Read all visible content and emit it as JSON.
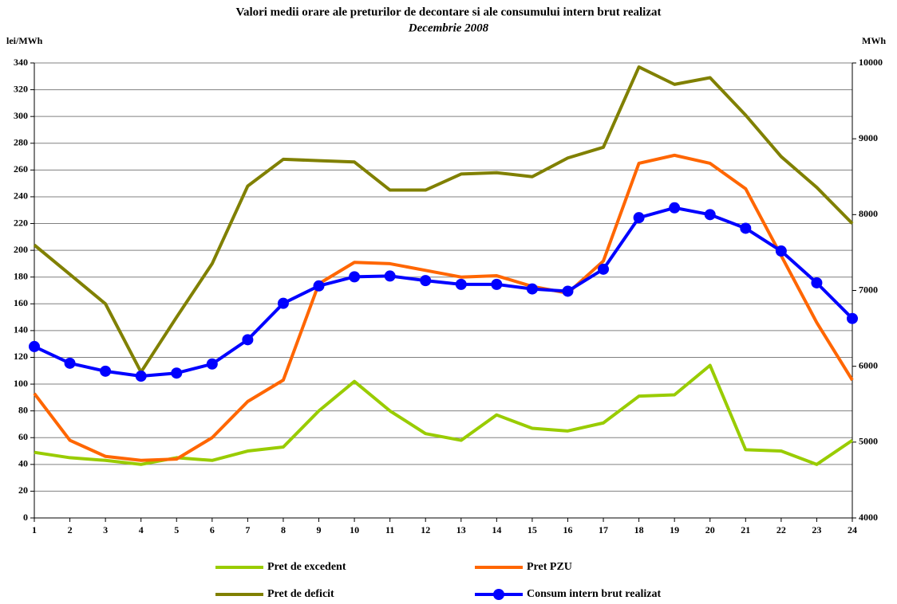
{
  "chart_data": {
    "type": "line",
    "title": "Valori medii orare ale preturilor de decontare si ale consumului intern brut realizat",
    "subtitle": "Decembrie 2008",
    "y_label": "lei/MWh",
    "y2_label": "MWh",
    "x": [
      1,
      2,
      3,
      4,
      5,
      6,
      7,
      8,
      9,
      10,
      11,
      12,
      13,
      14,
      15,
      16,
      17,
      18,
      19,
      20,
      21,
      22,
      23,
      24
    ],
    "xlim": [
      1,
      24
    ],
    "xticks": [
      1,
      2,
      3,
      4,
      5,
      6,
      7,
      8,
      9,
      10,
      11,
      12,
      13,
      14,
      15,
      16,
      17,
      18,
      19,
      20,
      21,
      22,
      23,
      24
    ],
    "ylim": [
      0,
      340
    ],
    "yticks": [
      0,
      20,
      40,
      60,
      80,
      100,
      120,
      140,
      160,
      180,
      200,
      220,
      240,
      260,
      280,
      300,
      320,
      340
    ],
    "y2lim": [
      4000,
      10000
    ],
    "y2ticks": [
      4000,
      5000,
      6000,
      7000,
      8000,
      9000,
      10000
    ],
    "grid": true,
    "legend": "bottom",
    "series": [
      {
        "name": "Pret de excedent",
        "color": "#99cc00",
        "values": [
          49,
          45,
          43,
          40,
          45,
          43,
          50,
          53,
          80,
          102,
          80,
          63,
          58,
          77,
          67,
          65,
          71,
          91,
          92,
          114,
          51,
          50,
          40,
          58
        ]
      },
      {
        "name": "Pret PZU",
        "color": "#ff6600",
        "values": [
          93,
          58,
          46,
          43,
          44,
          60,
          87,
          103,
          175,
          191,
          190,
          185,
          180,
          181,
          173,
          168,
          192,
          265,
          271,
          265,
          246,
          196,
          146,
          103
        ]
      },
      {
        "name": "Pret de deficit",
        "color": "#808000",
        "values": [
          204,
          182,
          160,
          109,
          150,
          190,
          248,
          268,
          267,
          266,
          245,
          245,
          257,
          258,
          255,
          269,
          277,
          337,
          324,
          329,
          301,
          270,
          247,
          220
        ]
      },
      {
        "name": "Consum intern brut realizat",
        "color": "#0000ff",
        "axis": "y2",
        "markers": true,
        "values": [
          6260,
          6040,
          5935,
          5870,
          5910,
          6030,
          6350,
          6830,
          7060,
          7180,
          7190,
          7130,
          7080,
          7080,
          7020,
          6990,
          7280,
          7960,
          8090,
          8000,
          7820,
          7520,
          7100,
          6630
        ]
      }
    ]
  }
}
